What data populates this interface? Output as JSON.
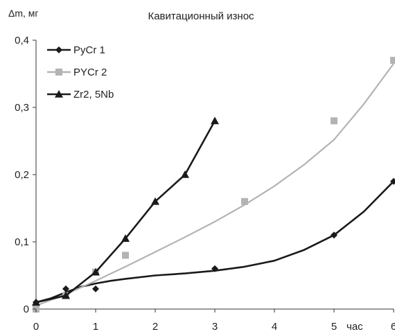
{
  "chart_data": {
    "type": "line",
    "title": "Кавитационный износ",
    "ylabel": "Δm, мг",
    "xlabel": "час",
    "xlim": [
      0,
      6
    ],
    "ylim": [
      0,
      0.4
    ],
    "x_ticks": [
      "0",
      "1",
      "2",
      "3",
      "4",
      "5",
      "6"
    ],
    "y_ticks": [
      "0",
      "0,1",
      "0,2",
      "0,3",
      "0,4"
    ],
    "grid": false,
    "legend_position": "top-left",
    "series": [
      {
        "name": "PyCr 1",
        "color": "#1a1a1a",
        "marker": "diamond",
        "x": [
          0,
          0.5,
          1,
          3,
          5,
          6
        ],
        "y": [
          0.01,
          0.03,
          0.03,
          0.06,
          0.11,
          0.19
        ],
        "curve": [
          [
            0,
            0.01
          ],
          [
            0.25,
            0.016
          ],
          [
            0.5,
            0.025
          ],
          [
            0.75,
            0.033
          ],
          [
            1,
            0.038
          ],
          [
            1.25,
            0.042
          ],
          [
            1.5,
            0.045
          ],
          [
            2,
            0.05
          ],
          [
            2.5,
            0.053
          ],
          [
            3,
            0.057
          ],
          [
            3.5,
            0.063
          ],
          [
            4,
            0.072
          ],
          [
            4.5,
            0.088
          ],
          [
            5,
            0.11
          ],
          [
            5.5,
            0.145
          ],
          [
            6,
            0.19
          ]
        ]
      },
      {
        "name": "PYCr 2",
        "color": "#b3b3b3",
        "marker": "square",
        "x": [
          0,
          0.5,
          1,
          1.5,
          3.5,
          5,
          6
        ],
        "y": [
          0,
          0.02,
          0.055,
          0.08,
          0.16,
          0.28,
          0.37
        ],
        "curve": [
          [
            0,
            0.005
          ],
          [
            0.5,
            0.022
          ],
          [
            1,
            0.042
          ],
          [
            1.5,
            0.063
          ],
          [
            2,
            0.085
          ],
          [
            2.5,
            0.107
          ],
          [
            3,
            0.13
          ],
          [
            3.5,
            0.155
          ],
          [
            4,
            0.183
          ],
          [
            4.5,
            0.215
          ],
          [
            5,
            0.252
          ],
          [
            5.5,
            0.305
          ],
          [
            6,
            0.365
          ]
        ]
      },
      {
        "name": "Zr2, 5Nb",
        "color": "#1a1a1a",
        "marker": "triangle",
        "x": [
          0,
          0.5,
          1,
          1.5,
          2,
          2.5,
          3
        ],
        "y": [
          0.01,
          0.02,
          0.055,
          0.105,
          0.16,
          0.2,
          0.28
        ],
        "curve": [
          [
            0,
            0.01
          ],
          [
            0.5,
            0.02
          ],
          [
            1,
            0.055
          ],
          [
            1.5,
            0.105
          ],
          [
            2,
            0.16
          ],
          [
            2.5,
            0.2
          ],
          [
            3,
            0.28
          ]
        ]
      }
    ]
  }
}
